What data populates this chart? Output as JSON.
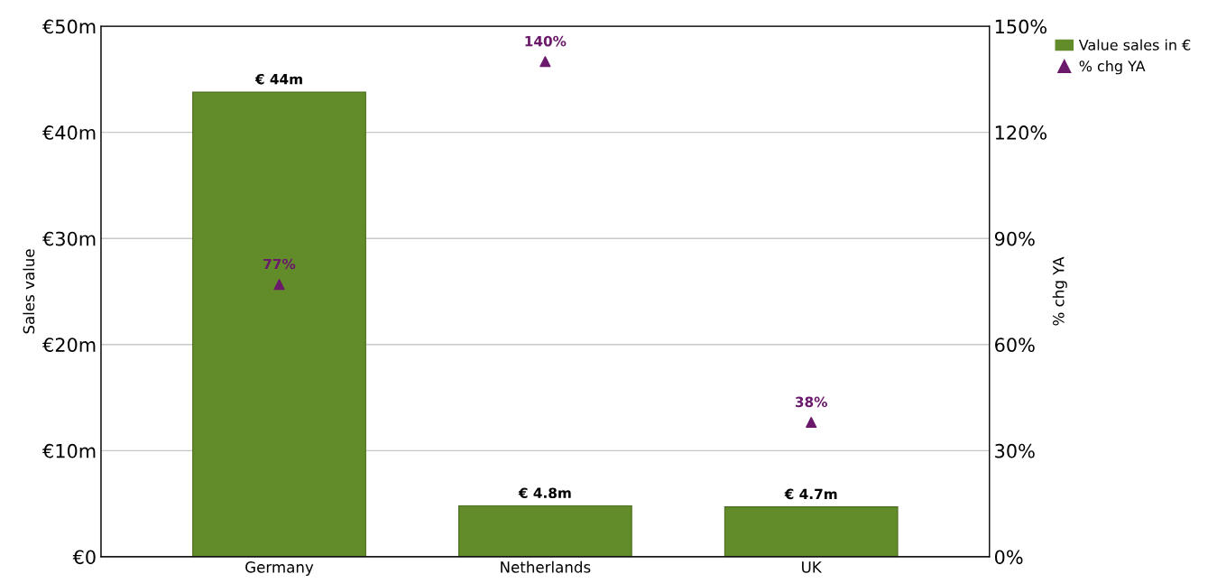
{
  "chart_data": {
    "type": "bar",
    "categories": [
      "Germany",
      "Netherlands",
      "UK"
    ],
    "xlabel": null,
    "ylabel": "Sales value",
    "y2label": "% chg YA",
    "ylim": [
      0,
      50
    ],
    "yticks": [
      {
        "value": 0,
        "label": "€0"
      },
      {
        "value": 10,
        "label": "€10m"
      },
      {
        "value": 20,
        "label": "€20m"
      },
      {
        "value": 30,
        "label": "€30m"
      },
      {
        "value": 40,
        "label": "€40m"
      },
      {
        "value": 50,
        "label": "€50m"
      }
    ],
    "y2lim": [
      0,
      150
    ],
    "y2ticks": [
      {
        "value": 0,
        "label": "0%"
      },
      {
        "value": 30,
        "label": "30%"
      },
      {
        "value": 60,
        "label": "60%"
      },
      {
        "value": 90,
        "label": "90%"
      },
      {
        "value": 120,
        "label": "120%"
      },
      {
        "value": 150,
        "label": "150%"
      }
    ],
    "grid": "y",
    "legend": "top right",
    "series": [
      {
        "name": "Value sales in €",
        "color": "#628b2a",
        "values": [
          43.8,
          4.8,
          4.7
        ],
        "value_labels": [
          "€ 44m",
          "€ 4.8m",
          "€ 4.7m"
        ]
      },
      {
        "name": "% chg YA",
        "type": "scatter",
        "axis": "y2",
        "marker": "triangle",
        "color": "#6b1a6b",
        "values": [
          77,
          140,
          38
        ],
        "value_labels": [
          "77%",
          "140%",
          "38%"
        ]
      }
    ]
  }
}
